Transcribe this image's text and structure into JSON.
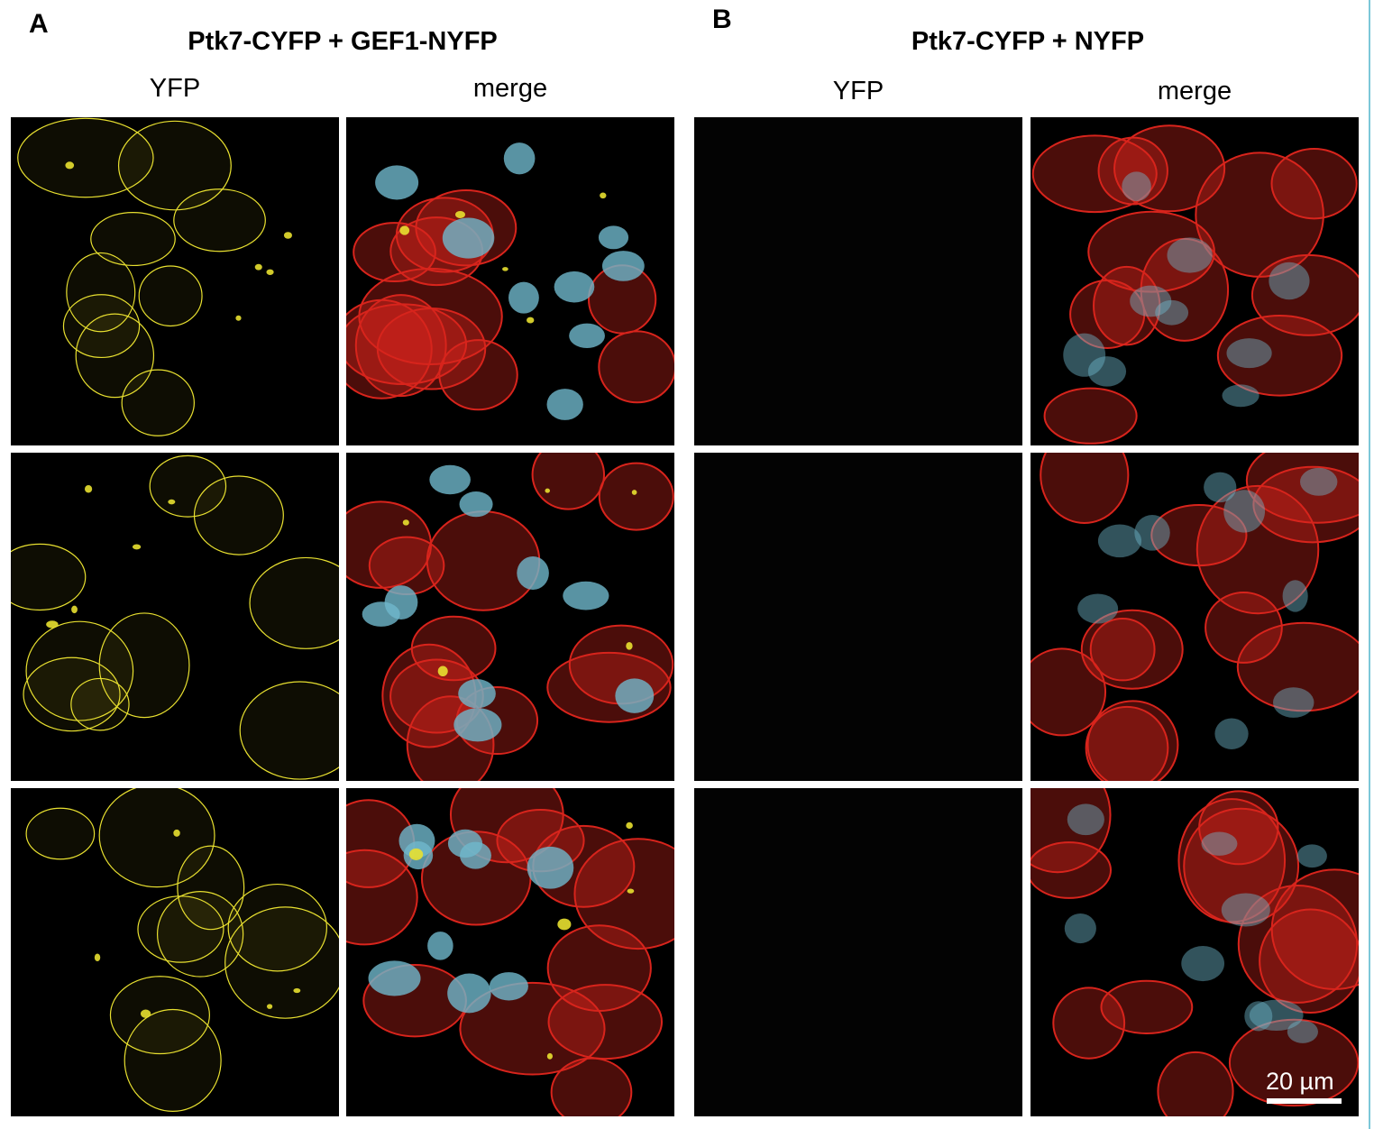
{
  "panel_a": {
    "letter": "A",
    "title": "Ptk7-CYFP + GEF1-NYFP",
    "columns": [
      "YFP",
      "merge"
    ]
  },
  "panel_b": {
    "letter": "B",
    "title": "Ptk7-CYFP + NYFP",
    "columns": [
      "YFP",
      "merge"
    ]
  },
  "scale_bar": {
    "label": "20 µm"
  },
  "colors": {
    "yfp": "#e8e030",
    "membrane": "#d8241c",
    "nuclei": "#6fb8cc",
    "accent_edge": "#7cc7d8"
  }
}
